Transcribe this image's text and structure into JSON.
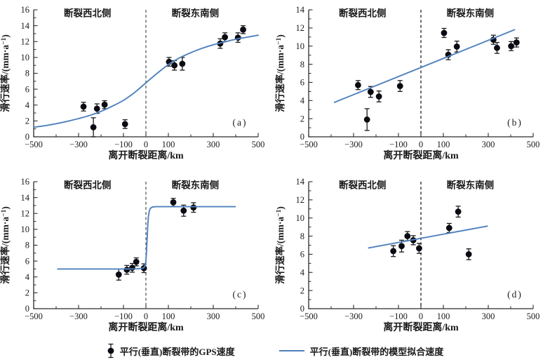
{
  "style": {
    "accent_blue": "#4f81bd",
    "point_color": "#0b0b13",
    "errorbar_color": "#1a1a1a",
    "axis_color": "#2b2b2b",
    "text_color": "#1a1a1a",
    "background": "#ffffff"
  },
  "legend": {
    "gps_label": "平行(垂直)断裂带的GPS速度",
    "model_label": "平行(垂直)断裂带的模型拟合速度"
  },
  "chart_data": [
    {
      "id": "a",
      "type": "scatter",
      "panel_label": "(a)",
      "xlabel": "离开断裂距离/km",
      "ylabel": "滑行速率/(mm·a⁻¹)",
      "xlim": [
        -500,
        500
      ],
      "ylim": [
        0,
        16
      ],
      "xticks_labeled": [
        -500,
        -300,
        -100,
        0,
        100,
        300,
        500
      ],
      "xticks_minor": [
        -400,
        -200,
        200,
        400
      ],
      "ytick_step": 2,
      "region_label_left": "断裂西北侧",
      "region_label_right": "断裂东南侧",
      "fault_line_x": 0,
      "fault_line_color": "#5a5a5a",
      "grid": false,
      "series": [
        {
          "name": "GPS速度",
          "type": "errorbar-scatter",
          "points": [
            [
              -278,
              3.8,
              0.55
            ],
            [
              -234,
              1.2,
              1.2
            ],
            [
              -218,
              3.55,
              0.6
            ],
            [
              -184,
              4.05,
              0.5
            ],
            [
              -93,
              1.6,
              0.55
            ],
            [
              103,
              9.45,
              0.55
            ],
            [
              127,
              9.0,
              0.6
            ],
            [
              162,
              9.2,
              0.8
            ],
            [
              331,
              11.75,
              0.6
            ],
            [
              352,
              12.55,
              0.55
            ],
            [
              410,
              12.5,
              0.6
            ],
            [
              433,
              13.5,
              0.5
            ]
          ]
        },
        {
          "name": "模型拟合速度",
          "type": "line",
          "smooth": true,
          "points": [
            [
              -500,
              1.2
            ],
            [
              -450,
              1.4
            ],
            [
              -400,
              1.65
            ],
            [
              -350,
              1.95
            ],
            [
              -300,
              2.3
            ],
            [
              -250,
              2.7
            ],
            [
              -200,
              3.2
            ],
            [
              -150,
              3.85
            ],
            [
              -100,
              4.6
            ],
            [
              -50,
              5.6
            ],
            [
              0,
              6.8
            ],
            [
              50,
              8.0
            ],
            [
              100,
              9.1
            ],
            [
              150,
              9.95
            ],
            [
              200,
              10.6
            ],
            [
              250,
              11.15
            ],
            [
              300,
              11.6
            ],
            [
              350,
              11.95
            ],
            [
              400,
              12.3
            ],
            [
              450,
              12.55
            ],
            [
              500,
              12.8
            ]
          ]
        }
      ]
    },
    {
      "id": "b",
      "type": "scatter",
      "panel_label": "(b)",
      "xlabel": "离开断裂距离/km",
      "ylabel": "滑行速率/(mm·a⁻¹)",
      "xlim": [
        -500,
        500
      ],
      "ylim": [
        0,
        14
      ],
      "xticks_labeled": [
        -500,
        -300,
        -100,
        0,
        100,
        300,
        500
      ],
      "xticks_minor": [
        -400,
        -200,
        200,
        400
      ],
      "ytick_step": 2,
      "region_label_left": "断裂西北侧",
      "region_label_right": "断裂东南侧",
      "fault_line_x": 0,
      "fault_line_color": "#1f1f1f",
      "grid": false,
      "series": [
        {
          "name": "GPS速度",
          "type": "errorbar-scatter",
          "points": [
            [
              -280,
              5.7,
              0.5
            ],
            [
              -240,
              1.9,
              1.2
            ],
            [
              -224,
              4.95,
              0.6
            ],
            [
              -187,
              4.45,
              0.6
            ],
            [
              -93,
              5.6,
              0.6
            ],
            [
              103,
              11.45,
              0.5
            ],
            [
              122,
              9.05,
              0.55
            ],
            [
              160,
              9.95,
              0.6
            ],
            [
              323,
              10.7,
              0.5
            ],
            [
              339,
              9.8,
              0.6
            ],
            [
              402,
              10.0,
              0.5
            ],
            [
              426,
              10.4,
              0.5
            ]
          ]
        },
        {
          "name": "模型拟合速度",
          "type": "line",
          "smooth": false,
          "points": [
            [
              -385,
              3.8
            ],
            [
              417,
              11.8
            ]
          ]
        }
      ]
    },
    {
      "id": "c",
      "type": "scatter",
      "panel_label": "(c)",
      "xlabel": "离开断裂距离/km",
      "ylabel": "滑行速率/(mm·a⁻¹)",
      "xlim": [
        -500,
        500
      ],
      "ylim": [
        0,
        16
      ],
      "xticks_labeled": [
        -500,
        -300,
        -100,
        0,
        100,
        300,
        500
      ],
      "xticks_minor": [
        -400,
        -200,
        200,
        400
      ],
      "ytick_step": 2,
      "region_label_left": "断裂西北侧",
      "region_label_right": "断裂东南侧",
      "fault_line_x": 0,
      "fault_line_color": "#5a5a5a",
      "grid": false,
      "series": [
        {
          "name": "GPS速度",
          "type": "errorbar-scatter",
          "points": [
            [
              -121,
              4.3,
              0.7
            ],
            [
              -85,
              4.9,
              0.55
            ],
            [
              -61,
              5.15,
              0.55
            ],
            [
              -43,
              5.9,
              0.5
            ],
            [
              -9,
              5.1,
              0.55
            ],
            [
              122,
              13.4,
              0.5
            ],
            [
              168,
              12.35,
              0.7
            ],
            [
              212,
              12.75,
              0.6
            ]
          ]
        },
        {
          "name": "模型拟合速度",
          "type": "line",
          "smooth": false,
          "points": [
            [
              -393,
              5.0
            ],
            [
              -120,
              5.0
            ],
            [
              -40,
              5.02
            ],
            [
              -15,
              5.08
            ],
            [
              -6,
              5.25
            ],
            [
              -1,
              5.7
            ],
            [
              2,
              6.8
            ],
            [
              5,
              8.6
            ],
            [
              8,
              10.4
            ],
            [
              11,
              11.6
            ],
            [
              15,
              12.3
            ],
            [
              20,
              12.65
            ],
            [
              28,
              12.8
            ],
            [
              45,
              12.85
            ],
            [
              398,
              12.85
            ]
          ]
        }
      ]
    },
    {
      "id": "d",
      "type": "scatter",
      "panel_label": "(d)",
      "xlabel": "离开断裂距离/km",
      "ylabel": "滑行速率/(mm·a⁻¹)",
      "xlim": [
        -500,
        500
      ],
      "ylim": [
        0,
        14
      ],
      "xticks_labeled": [
        -500,
        -300,
        -100,
        0,
        100,
        300,
        500
      ],
      "xticks_minor": [
        -400,
        -200,
        200,
        400
      ],
      "ytick_step": 2,
      "region_label_left": "断裂西北侧",
      "region_label_right": "断裂东南侧",
      "fault_line_x": 0,
      "fault_line_color": "#1f1f1f",
      "grid": false,
      "series": [
        {
          "name": "GPS速度",
          "type": "errorbar-scatter",
          "points": [
            [
              -123,
              6.35,
              0.6
            ],
            [
              -86,
              6.9,
              0.65
            ],
            [
              -60,
              8.0,
              0.5
            ],
            [
              -34,
              7.55,
              0.5
            ],
            [
              -8,
              6.65,
              0.55
            ],
            [
              126,
              8.9,
              0.5
            ],
            [
              166,
              10.7,
              0.6
            ],
            [
              213,
              6.0,
              0.6
            ]
          ]
        },
        {
          "name": "模型拟合速度",
          "type": "line",
          "smooth": false,
          "points": [
            [
              -233,
              6.7
            ],
            [
              296,
              9.1
            ]
          ]
        }
      ]
    }
  ]
}
